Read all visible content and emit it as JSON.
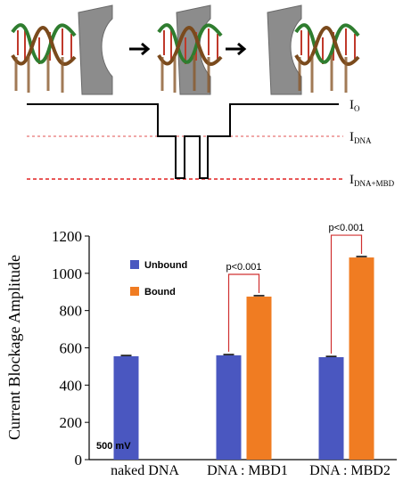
{
  "diagram": {
    "levels": [
      {
        "main": "I",
        "sub": "O"
      },
      {
        "main": "I",
        "sub": "DNA"
      },
      {
        "main": "I",
        "sub": "DNA+MBD"
      }
    ]
  },
  "chart_data": {
    "type": "bar",
    "ylabel": "Current Blockage Amplitude",
    "categories": [
      "naked DNA",
      "DNA : MBD1",
      "DNA : MBD2"
    ],
    "series": [
      {
        "name": "Unbound",
        "color": "#4a57c0",
        "values": [
          555,
          560,
          550
        ],
        "errors": [
          4,
          4,
          4
        ]
      },
      {
        "name": "Bound",
        "color": "#f07c22",
        "values": [
          null,
          875,
          1085
        ],
        "errors": [
          null,
          5,
          5
        ]
      }
    ],
    "ylim": [
      0,
      1200
    ],
    "yticks": [
      0,
      200,
      400,
      600,
      800,
      1000,
      1200
    ],
    "significance": [
      "p<0.001",
      "p<0.001"
    ],
    "note": "500 mV"
  }
}
